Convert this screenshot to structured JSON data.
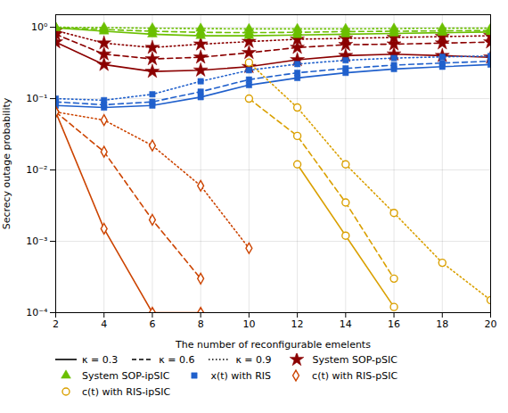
{
  "chart_data": {
    "type": "line",
    "x": [
      2,
      4,
      6,
      8,
      10,
      12,
      14,
      16,
      18,
      20
    ],
    "xlabel": "The number of reconfigurable emelents",
    "ylabel": "Secrecy outage probability",
    "xlim": [
      2,
      20
    ],
    "xticks": [
      2,
      4,
      6,
      8,
      10,
      12,
      14,
      16,
      18,
      20
    ],
    "ylim": [
      0.0001,
      1.5
    ],
    "yticks": [
      {
        "value": 0.0001,
        "label": "10⁻⁴"
      },
      {
        "value": 0.001,
        "label": "10⁻³"
      },
      {
        "value": 0.01,
        "label": "10⁻²"
      },
      {
        "value": 0.1,
        "label": "10⁻¹"
      },
      {
        "value": 1,
        "label": "10⁰"
      }
    ],
    "log": "y",
    "grid": true,
    "legend": "lower left",
    "line_styles": [
      {
        "name": "κ = 0.3",
        "line_style": "solid"
      },
      {
        "name": "κ = 0.6",
        "line_style": "dashed"
      },
      {
        "name": "κ = 0.9",
        "line_style": "dotted"
      }
    ],
    "series": [
      {
        "name": "System SOP-pSIC",
        "color": "#8B0000",
        "marker": "star",
        "line_style": "solid",
        "values": [
          0.62,
          0.3,
          0.24,
          0.25,
          0.28,
          0.35,
          0.4,
          0.42,
          0.4,
          0.38
        ]
      },
      {
        "name": "System SOP-pSIC",
        "color": "#8B0000",
        "marker": "star",
        "line_style": "dashed",
        "values": [
          0.8,
          0.42,
          0.36,
          0.38,
          0.44,
          0.52,
          0.57,
          0.58,
          0.6,
          0.62
        ]
      },
      {
        "name": "System SOP-pSIC",
        "color": "#8B0000",
        "marker": "star",
        "line_style": "dotted",
        "values": [
          0.9,
          0.6,
          0.52,
          0.58,
          0.63,
          0.68,
          0.7,
          0.72,
          0.74,
          0.76
        ]
      },
      {
        "name": "System SOP-ipSIC",
        "color": "#6BBF00",
        "marker": "triangle",
        "line_style": "solid",
        "values": [
          0.98,
          0.88,
          0.8,
          0.76,
          0.76,
          0.78,
          0.8,
          0.82,
          0.84,
          0.86
        ]
      },
      {
        "name": "System SOP-ipSIC",
        "color": "#6BBF00",
        "marker": "triangle",
        "line_style": "dashed",
        "values": [
          0.99,
          0.93,
          0.88,
          0.85,
          0.84,
          0.85,
          0.87,
          0.88,
          0.89,
          0.9
        ]
      },
      {
        "name": "System SOP-ipSIC",
        "color": "#6BBF00",
        "marker": "triangle",
        "line_style": "dotted",
        "values": [
          1.0,
          0.99,
          0.97,
          0.96,
          0.95,
          0.95,
          0.95,
          0.96,
          0.97,
          0.97
        ]
      },
      {
        "name": "x(t) with RIS",
        "color": "#2060CC",
        "marker": "square",
        "line_style": "solid",
        "values": [
          0.08,
          0.075,
          0.08,
          0.105,
          0.155,
          0.195,
          0.23,
          0.26,
          0.28,
          0.3
        ]
      },
      {
        "name": "x(t) with RIS",
        "color": "#2060CC",
        "marker": "square",
        "line_style": "dashed",
        "values": [
          0.09,
          0.082,
          0.09,
          0.125,
          0.185,
          0.23,
          0.265,
          0.295,
          0.315,
          0.335
        ]
      },
      {
        "name": "x(t) with RIS",
        "color": "#2060CC",
        "marker": "square",
        "line_style": "dotted",
        "values": [
          0.1,
          0.095,
          0.115,
          0.175,
          0.25,
          0.305,
          0.345,
          0.37,
          0.385,
          0.395
        ]
      },
      {
        "name": "c(t) with RIS-pSIC",
        "color": "#CC4400",
        "marker": "open diamond",
        "line_style": "solid",
        "values": [
          0.065,
          0.0015,
          0.0001,
          0.0001,
          null,
          null,
          null,
          null,
          null,
          null
        ]
      },
      {
        "name": "c(t) with RIS-pSIC",
        "color": "#CC4400",
        "marker": "open diamond",
        "line_style": "dashed",
        "values": [
          0.065,
          0.018,
          0.002,
          0.0003,
          null,
          null,
          null,
          null,
          null,
          null
        ]
      },
      {
        "name": "c(t) with RIS-pSIC",
        "color": "#CC4400",
        "marker": "open diamond",
        "line_style": "dotted",
        "values": [
          0.065,
          0.05,
          0.022,
          0.006,
          0.0008,
          null,
          null,
          null,
          null,
          null
        ]
      },
      {
        "name": "c(t) with RIS-ipSIC",
        "color": "#DAA000",
        "marker": "open circle",
        "line_style": "solid",
        "values": [
          null,
          null,
          null,
          null,
          null,
          0.012,
          0.0012,
          0.00012,
          null,
          null
        ]
      },
      {
        "name": "c(t) with RIS-ipSIC",
        "color": "#DAA000",
        "marker": "open circle",
        "line_style": "dashed",
        "values": [
          null,
          null,
          null,
          null,
          0.1,
          0.03,
          0.0035,
          0.0003,
          null,
          null
        ]
      },
      {
        "name": "c(t) with RIS-ipSIC",
        "color": "#DAA000",
        "marker": "open circle",
        "line_style": "dotted",
        "values": [
          null,
          null,
          null,
          null,
          0.32,
          0.075,
          0.012,
          0.0025,
          0.0005,
          0.00015
        ]
      }
    ]
  }
}
